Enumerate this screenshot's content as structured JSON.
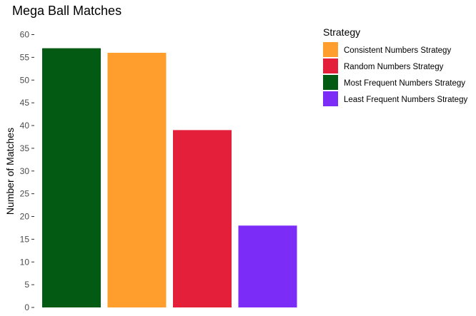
{
  "chart_data": {
    "type": "bar",
    "title": "Mega Ball Matches",
    "xlabel": "",
    "ylabel": "Number of Matches",
    "ylim": [
      0,
      60
    ],
    "yticks": [
      0,
      5,
      10,
      15,
      20,
      25,
      30,
      35,
      40,
      45,
      50,
      55,
      60
    ],
    "grid": false,
    "legend": {
      "title": "Strategy",
      "placement": "right"
    },
    "categories": [
      "Most Frequent Numbers Strategy",
      "Consistent Numbers Strategy",
      "Random Numbers Strategy",
      "Least Frequent Numbers Strategy"
    ],
    "values": [
      57,
      56,
      39,
      18
    ],
    "series": [
      {
        "name": "Consistent Numbers Strategy",
        "color": "#FF9E2C",
        "value": 56
      },
      {
        "name": "Random Numbers Strategy",
        "color": "#E31F3A",
        "value": 39
      },
      {
        "name": "Most Frequent Numbers Strategy",
        "color": "#035A13",
        "value": 57
      },
      {
        "name": "Least Frequent Numbers Strategy",
        "color": "#7B2CF7",
        "value": 18
      }
    ]
  }
}
